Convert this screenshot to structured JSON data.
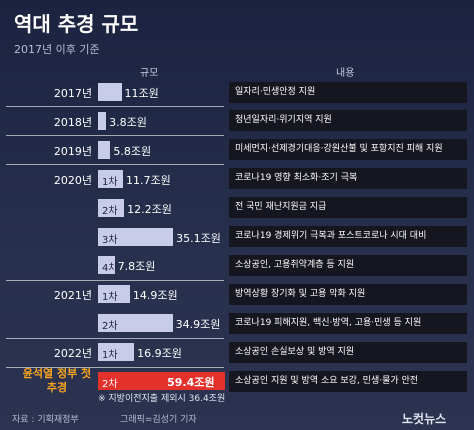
{
  "chart_data": {
    "type": "bar",
    "title": "역대 추경 규모",
    "subtitle": "2017년 이후 기준",
    "value_header": "규모",
    "description_header": "내용",
    "years": [
      "2017년",
      "2018년",
      "2019년",
      "2020년",
      null,
      null,
      null,
      "2021년",
      null,
      "2022년",
      "윤석열 정부 첫 추경"
    ],
    "rounds": [
      null,
      null,
      null,
      "1차",
      "2차",
      "3차",
      "4차",
      "1차",
      "2차",
      "1차",
      "2차"
    ],
    "values": [
      11,
      3.8,
      5.8,
      11.7,
      12.2,
      35.1,
      7.8,
      14.9,
      34.9,
      16.9,
      59.4
    ],
    "value_labels": [
      "11조원",
      "3.8조원",
      "5.8조원",
      "11.7조원",
      "12.2조원",
      "35.1조원",
      "7.8조원",
      "14.9조원",
      "34.9조원",
      "16.9조원",
      "59.4조원"
    ],
    "categories": [
      "일자리·민생안정 지원",
      "청년일자리·위기지역 지원",
      "미세먼지·선제경기대응·강원산불 및 포항지진 피해 지원",
      "코로나19 영향 최소화·조기 극복",
      "전 국민 재난지원금 지급",
      "코로나19 경제위기 극복과 포스트코로나 시대 대비",
      "소상공인, 고용취약계층 등 지원",
      "방역상황 장기화 및 고용 악화 지원",
      "코로나19 피해지원, 백신·방역, 고용·민생 등 지원",
      "소상공인 손실보상 및 방역 지원",
      "소상공인 지원 및 방역 소요 보강, 민생·물가 안전"
    ],
    "color": "#c9cce9",
    "highlight_color": "#e4312b",
    "note": "※ 지방이전지출 제외시 36.4조원",
    "source": "자료 : 기획재정부",
    "credit": "그래픽=김성기 기자",
    "logo": "노컷뉴스"
  }
}
